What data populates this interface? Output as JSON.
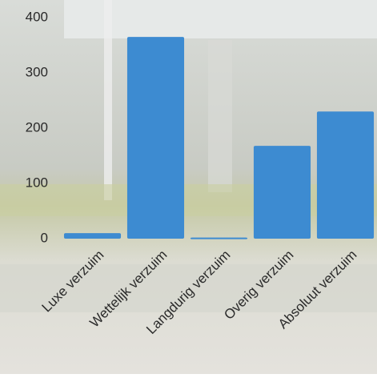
{
  "chart_data": {
    "type": "bar",
    "categories": [
      "Luxe verzuim",
      "Wettelijk verzuim",
      "Langdurig verzuim",
      "Overig verzuim",
      "Absoluut verzuim"
    ],
    "values": [
      10,
      365,
      2,
      168,
      230
    ],
    "color": "#3d8bd1",
    "ylim": [
      0,
      400
    ],
    "yticks": [
      0,
      100,
      200,
      300,
      400
    ],
    "grid": false
  }
}
